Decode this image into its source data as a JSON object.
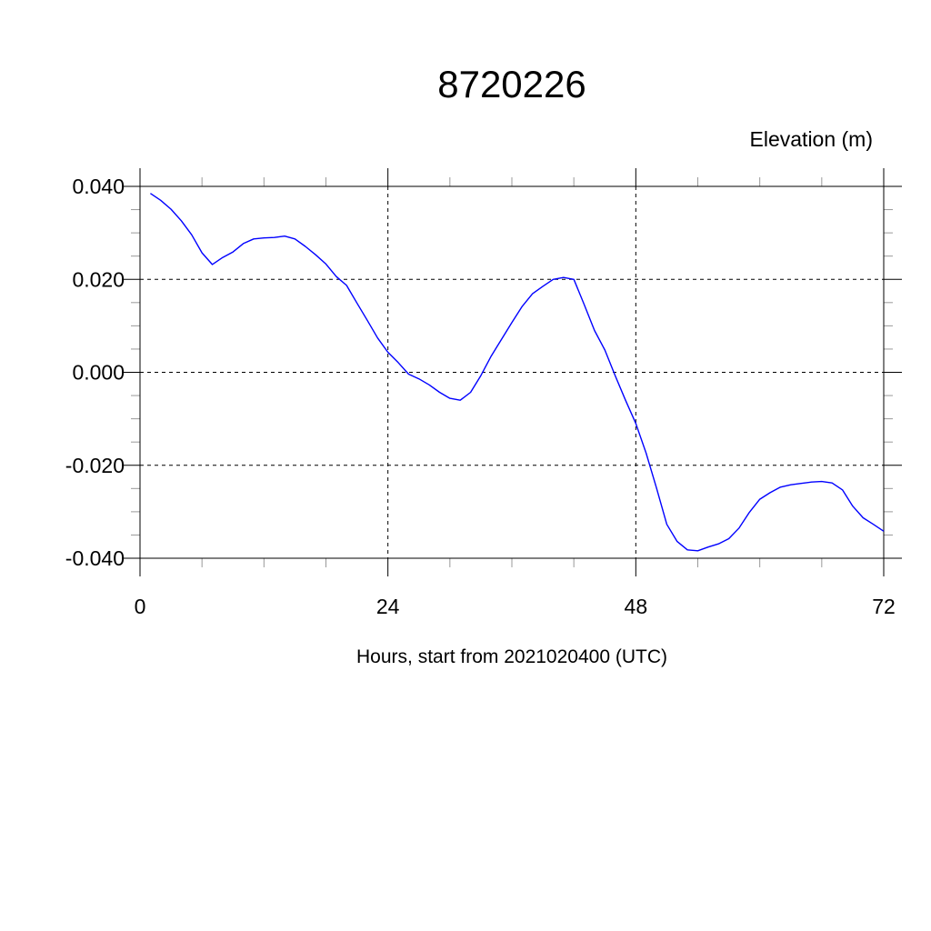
{
  "chart_data": {
    "type": "line",
    "title": "8720226",
    "ylabel": "Elevation (m)",
    "xlabel": "Hours, start from 2021020400 (UTC)",
    "xlim": [
      0,
      72
    ],
    "ylim": [
      -0.04,
      0.04
    ],
    "x_ticks": [
      0,
      24,
      48,
      72
    ],
    "x_tick_labels": [
      "0",
      "24",
      "48",
      "72"
    ],
    "x_minor_step": 6,
    "y_ticks": [
      -0.04,
      -0.02,
      0.0,
      0.02,
      0.04
    ],
    "y_tick_labels": [
      "-0.040",
      "-0.020",
      "0.000",
      "0.020",
      "0.040"
    ],
    "y_minor_step": 0.005,
    "grid": true,
    "series": [
      {
        "color": "#0000ff",
        "x": [
          1,
          2,
          3,
          4,
          5,
          6,
          7,
          8,
          9,
          10,
          11,
          12,
          13,
          14,
          15,
          16,
          17,
          18,
          19,
          20,
          21,
          22,
          23,
          24,
          25,
          26,
          27,
          28,
          29,
          30,
          31,
          32,
          33,
          34,
          35,
          36,
          37,
          38,
          39,
          40,
          41,
          42,
          43,
          44,
          45,
          46,
          47,
          48,
          49,
          50,
          51,
          52,
          53,
          54,
          55,
          56,
          57,
          58,
          59,
          60,
          61,
          62,
          63,
          64,
          65,
          66,
          67,
          68,
          69,
          70,
          71,
          72
        ],
        "y": [
          0.0385,
          0.037,
          0.0351,
          0.0326,
          0.0296,
          0.0257,
          0.0232,
          0.0247,
          0.0259,
          0.0277,
          0.0287,
          0.0289,
          0.029,
          0.0293,
          0.0287,
          0.0271,
          0.0253,
          0.0233,
          0.0206,
          0.0187,
          0.0149,
          0.0112,
          0.0074,
          0.0043,
          0.0021,
          -0.0004,
          -0.0014,
          -0.0027,
          -0.0043,
          -0.0056,
          -0.006,
          -0.0043,
          -0.0007,
          0.0035,
          0.0071,
          0.0107,
          0.0142,
          0.0169,
          0.0185,
          0.02,
          0.0204,
          0.02,
          0.0146,
          0.009,
          0.0048,
          -0.0007,
          -0.006,
          -0.011,
          -0.0174,
          -0.0249,
          -0.0327,
          -0.0364,
          -0.0382,
          -0.0384,
          -0.0376,
          -0.0369,
          -0.0358,
          -0.0335,
          -0.0301,
          -0.0273,
          -0.0259,
          -0.0247,
          -0.0242,
          -0.0239,
          -0.0236,
          -0.0235,
          -0.0238,
          -0.0253,
          -0.0288,
          -0.0313,
          -0.0327,
          -0.0342
        ]
      }
    ]
  }
}
